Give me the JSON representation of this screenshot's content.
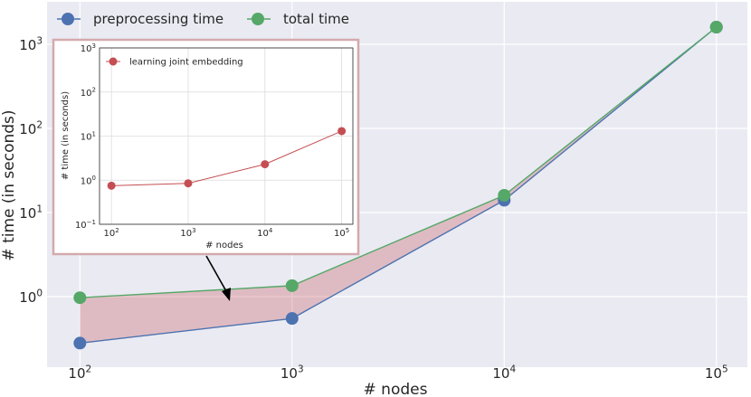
{
  "chart_data": [
    {
      "type": "line",
      "title": "",
      "xlabel": "# nodes",
      "ylabel": "# time (in seconds)",
      "xscale": "log",
      "yscale": "log",
      "x": [
        100,
        1000,
        10000,
        100000
      ],
      "xlim": [
        70,
        140000
      ],
      "ylim": [
        0.145,
        3200
      ],
      "x_ticks": [
        {
          "value": 100,
          "base": "10",
          "exp": "2"
        },
        {
          "value": 1000,
          "base": "10",
          "exp": "3"
        },
        {
          "value": 10000,
          "base": "10",
          "exp": "4"
        },
        {
          "value": 100000,
          "base": "10",
          "exp": "5"
        }
      ],
      "y_ticks": [
        {
          "value": 1,
          "base": "10",
          "exp": "0"
        },
        {
          "value": 10,
          "base": "10",
          "exp": "1"
        },
        {
          "value": 100,
          "base": "10",
          "exp": "2"
        },
        {
          "value": 1000,
          "base": "10",
          "exp": "3"
        }
      ],
      "series": [
        {
          "name": "preprocessing time",
          "color": "#4c72b0",
          "values": [
            0.28,
            0.55,
            14,
            1600
          ]
        },
        {
          "name": "total time",
          "color": "#55a868",
          "values": [
            0.97,
            1.35,
            16,
            1600
          ]
        }
      ],
      "fill_between": {
        "lower": "preprocessing time",
        "upper": "total time",
        "color": "#c44e52",
        "alpha": 0.3
      },
      "legend": "top-left",
      "grid": true,
      "background": "#eaeaf2"
    },
    {
      "type": "line",
      "title": "",
      "xlabel": "# nodes",
      "ylabel": "# time (in seconds)",
      "xscale": "log",
      "yscale": "log",
      "x": [
        100,
        1000,
        10000,
        100000
      ],
      "xlim": [
        70,
        140000
      ],
      "ylim": [
        0.1,
        1000
      ],
      "x_ticks": [
        {
          "value": 100,
          "base": "10",
          "exp": "2"
        },
        {
          "value": 1000,
          "base": "10",
          "exp": "3"
        },
        {
          "value": 10000,
          "base": "10",
          "exp": "4"
        },
        {
          "value": 100000,
          "base": "10",
          "exp": "5"
        }
      ],
      "y_ticks": [
        {
          "value": 0.1,
          "base": "10",
          "exp": "−1"
        },
        {
          "value": 1,
          "base": "10",
          "exp": "0"
        },
        {
          "value": 10,
          "base": "10",
          "exp": "1"
        },
        {
          "value": 100,
          "base": "10",
          "exp": "2"
        },
        {
          "value": 1000,
          "base": "10",
          "exp": "3"
        }
      ],
      "series": [
        {
          "name": "learning joint embedding",
          "color": "#c44e52",
          "values": [
            0.75,
            0.85,
            2.3,
            13
          ]
        }
      ],
      "legend": "top-left",
      "grid": true,
      "background": "#ffffff",
      "border_color": "#d4a9ad"
    }
  ]
}
